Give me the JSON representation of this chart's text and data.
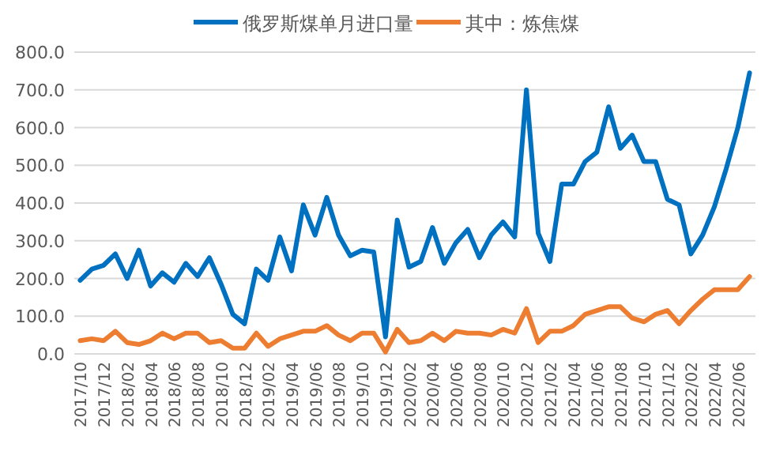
{
  "chart_data": {
    "type": "line",
    "categories": [
      "2017/10",
      null,
      "2017/12",
      null,
      "2018/02",
      null,
      "2018/04",
      null,
      "2018/06",
      null,
      "2018/08",
      null,
      "2018/10",
      null,
      "2018/12",
      null,
      "2019/02",
      null,
      "2019/04",
      null,
      "2019/06",
      null,
      "2019/08",
      null,
      "2019/10",
      null,
      "2019/12",
      null,
      "2020/02",
      null,
      "2020/04",
      null,
      "2020/06",
      null,
      "2020/08",
      null,
      "2020/10",
      null,
      "2020/12",
      null,
      "2021/02",
      null,
      "2021/04",
      null,
      "2021/06",
      null,
      "2021/08",
      null,
      "2021/10",
      null,
      "2021/12",
      null,
      "2022/02",
      null,
      "2022/04",
      null,
      "2022/06",
      null
    ],
    "series": [
      {
        "name": "俄罗斯煤单月进口量",
        "color": "#0070c0",
        "values": [
          195,
          225,
          235,
          265,
          200,
          275,
          180,
          215,
          190,
          240,
          205,
          255,
          185,
          105,
          80,
          225,
          195,
          310,
          220,
          395,
          315,
          415,
          315,
          260,
          275,
          270,
          45,
          355,
          230,
          245,
          335,
          240,
          295,
          330,
          255,
          315,
          350,
          310,
          700,
          320,
          245,
          450,
          450,
          510,
          535,
          655,
          545,
          580,
          510,
          510,
          410,
          395,
          265,
          315,
          390,
          490,
          600,
          745
        ]
      },
      {
        "name": "其中：炼焦煤",
        "color": "#ed7d31",
        "values": [
          35,
          40,
          35,
          60,
          30,
          25,
          35,
          55,
          40,
          55,
          55,
          30,
          35,
          15,
          15,
          55,
          20,
          40,
          50,
          60,
          60,
          75,
          50,
          35,
          55,
          55,
          5,
          65,
          30,
          35,
          55,
          35,
          60,
          55,
          55,
          50,
          65,
          55,
          120,
          30,
          60,
          60,
          75,
          105,
          115,
          125,
          125,
          95,
          85,
          105,
          115,
          80,
          115,
          145,
          170,
          170,
          170,
          205
        ]
      }
    ],
    "ylim": [
      0,
      800
    ],
    "yticks": [
      {
        "value": 0,
        "label": "0.0"
      },
      {
        "value": 100,
        "label": "100.0"
      },
      {
        "value": 200,
        "label": "200.0"
      },
      {
        "value": 300,
        "label": "300.0"
      },
      {
        "value": 400,
        "label": "400.0"
      },
      {
        "value": 500,
        "label": "500.0"
      },
      {
        "value": 600,
        "label": "600.0"
      },
      {
        "value": 700,
        "label": "700.0"
      },
      {
        "value": 800,
        "label": "800.0"
      }
    ],
    "grid": "y",
    "legend": "top",
    "marker": "none",
    "line_style": "solid"
  }
}
